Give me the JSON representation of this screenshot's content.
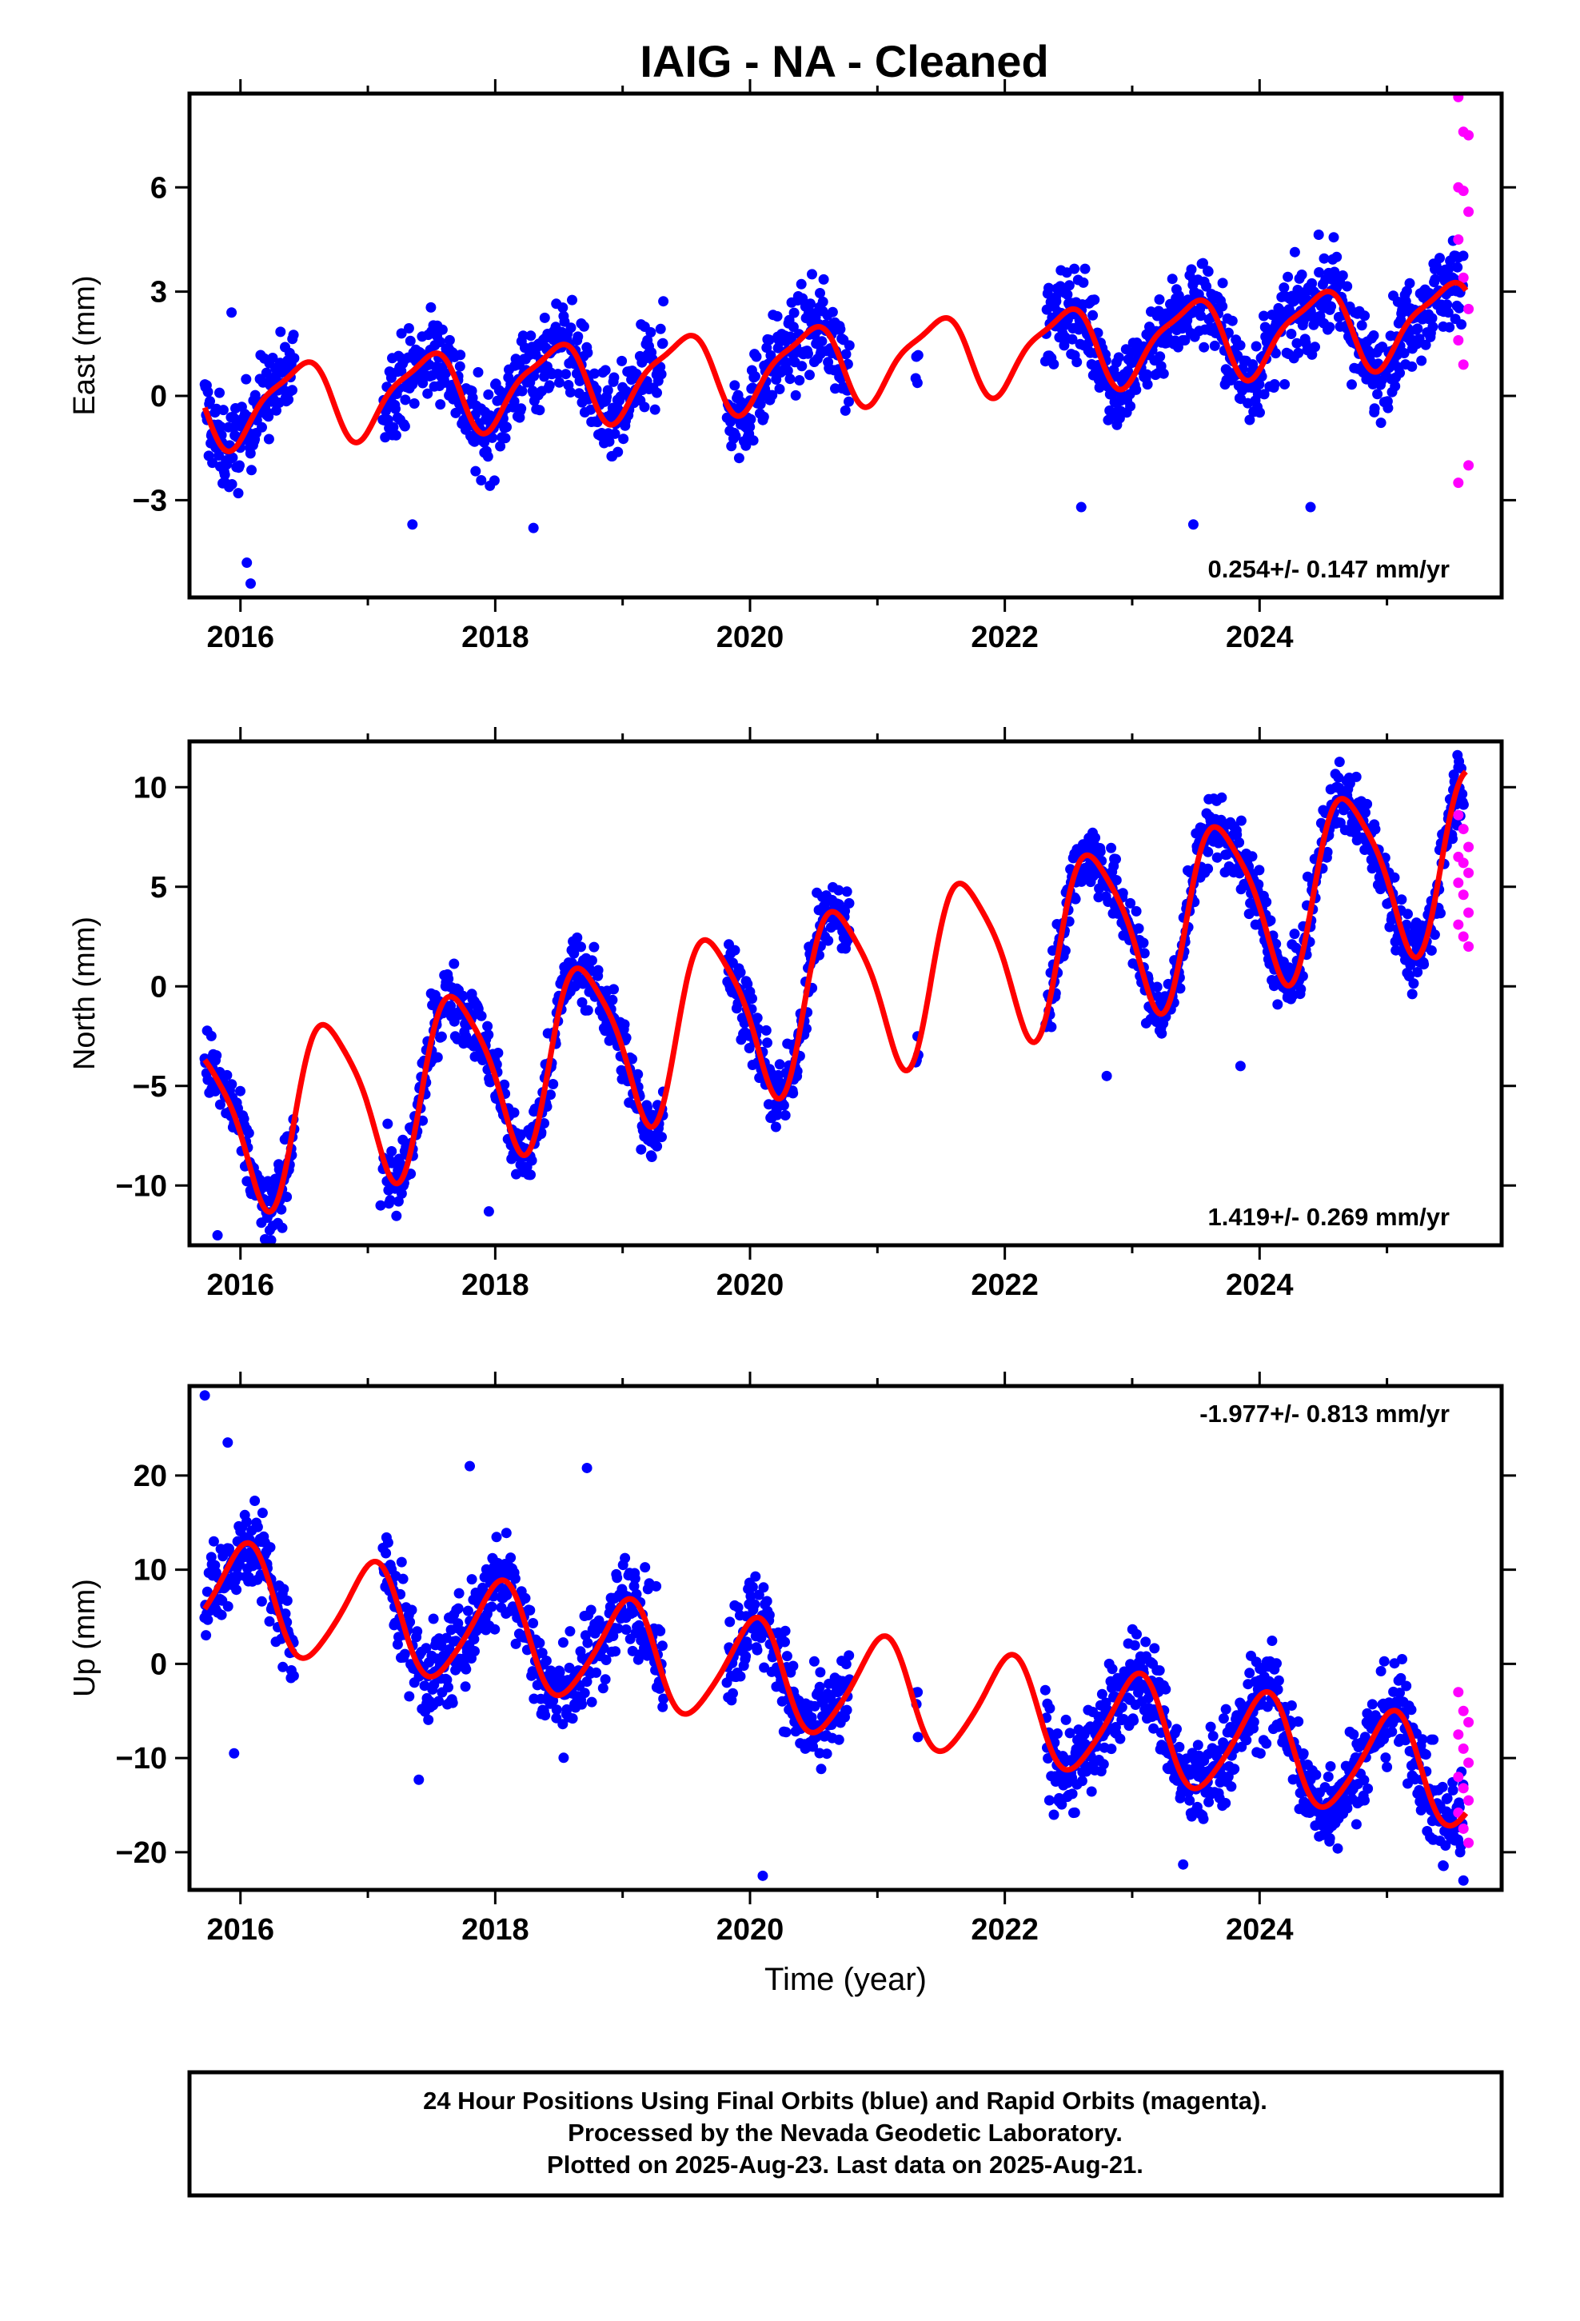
{
  "title": "IAIG  - NA - Cleaned",
  "footer": {
    "line1": "24 Hour Positions Using Final Orbits (blue) and Rapid Orbits (magenta).",
    "line2": "Processed by the Nevada Geodetic Laboratory.",
    "line3": "Plotted on 2025-Aug-23. Last data on 2025-Aug-21."
  },
  "colors": {
    "final": "#0000ff",
    "rapid": "#ff00ff",
    "model": "#ff0000",
    "frame": "#000000"
  },
  "chart_data": [
    {
      "type": "scatter",
      "name": "east",
      "ylabel": "East (mm)",
      "xlabel": "",
      "xlim": [
        2015.6,
        2025.9
      ],
      "ylim": [
        -5.8,
        8.7
      ],
      "xticks": [
        2016,
        2018,
        2020,
        2022,
        2024
      ],
      "yticks": [
        -3,
        0,
        3,
        6
      ],
      "ytick_labels": [
        "−3",
        "0",
        "3",
        "6"
      ],
      "rate_label": "0.254+/- 0.147 mm/yr",
      "rate_position": "bottom-right",
      "trend": {
        "start": -0.3,
        "rate": 0.254
      },
      "seasonal": {
        "annual_amp": 1.1,
        "annual_phase": 0.2,
        "semiannual_amp": 0.3,
        "semiannual_phase": 1.0
      },
      "scatter_sd": 0.9,
      "outliers": [
        [
          2015.93,
          2.4
        ],
        [
          2016.05,
          -4.8
        ],
        [
          2016.08,
          -5.4
        ],
        [
          2017.35,
          -3.7
        ],
        [
          2018.3,
          -3.8
        ],
        [
          2023.48,
          -3.7
        ],
        [
          2022.6,
          -3.2
        ],
        [
          2024.4,
          -3.2
        ]
      ],
      "rapid": {
        "x_range": [
          2025.56,
          2025.64
        ],
        "values": [
          8.6,
          7.6,
          7.5,
          6.0,
          5.9,
          5.3,
          4.5,
          3.4,
          2.5,
          1.6,
          0.9,
          -2.0,
          -2.5
        ]
      }
    },
    {
      "type": "scatter",
      "name": "north",
      "ylabel": "North (mm)",
      "xlabel": "",
      "xlim": [
        2015.6,
        2025.9
      ],
      "ylim": [
        -13.0,
        12.3
      ],
      "xticks": [
        2016,
        2018,
        2020,
        2022,
        2024
      ],
      "yticks": [
        -10,
        -5,
        0,
        5,
        10
      ],
      "ytick_labels": [
        "−10",
        "−5",
        "0",
        "5",
        "10"
      ],
      "rate_label": "1.419+/- 0.269 mm/yr",
      "rate_position": "bottom-right",
      "trend": {
        "start": -7.2,
        "rate": 1.419
      },
      "seasonal": {
        "annual_amp": 4.2,
        "annual_phase": 0.45,
        "semiannual_amp": 0.8,
        "semiannual_phase": 0.9
      },
      "scatter_sd": 1.2,
      "outliers": [
        [
          2015.82,
          -12.5
        ],
        [
          2017.1,
          -11.0
        ],
        [
          2017.95,
          -11.3
        ],
        [
          2022.8,
          -4.5
        ],
        [
          2023.85,
          -4.0
        ],
        [
          2025.35,
          1.8
        ]
      ],
      "rapid": {
        "x_range": [
          2025.56,
          2025.64
        ],
        "values": [
          8.6,
          7.9,
          7.0,
          6.5,
          6.2,
          5.7,
          5.2,
          4.6,
          3.7,
          3.1,
          2.5,
          2.0
        ]
      }
    },
    {
      "type": "scatter",
      "name": "up",
      "ylabel": "Up (mm)",
      "xlabel": "Time (year)",
      "xlim": [
        2015.6,
        2025.9
      ],
      "ylim": [
        -24.0,
        29.5
      ],
      "xticks": [
        2016,
        2018,
        2020,
        2022,
        2024
      ],
      "yticks": [
        -20,
        -10,
        0,
        10,
        20
      ],
      "ytick_labels": [
        "−20",
        "−10",
        "0",
        "10",
        "20"
      ],
      "rate_label": "-1.977+/- 0.813 mm/yr",
      "rate_position": "top-right",
      "trend": {
        "start": 7.5,
        "rate": -1.977
      },
      "seasonal": {
        "annual_amp": 5.5,
        "annual_phase": 0.78,
        "semiannual_amp": 0.8,
        "semiannual_phase": 0.5
      },
      "scatter_sd": 3.5,
      "outliers": [
        [
          2015.72,
          28.5
        ],
        [
          2015.9,
          23.5
        ],
        [
          2015.95,
          -9.5
        ],
        [
          2017.4,
          -12.3
        ],
        [
          2020.1,
          -22.5
        ],
        [
          2023.4,
          -21.3
        ],
        [
          2025.6,
          -23.0
        ],
        [
          2017.8,
          21.0
        ],
        [
          2018.72,
          20.8
        ]
      ],
      "rapid": {
        "x_range": [
          2025.56,
          2025.64
        ],
        "values": [
          -3.0,
          -5.0,
          -6.2,
          -7.5,
          -9.0,
          -10.5,
          -12.0,
          -13.2,
          -14.5,
          -15.8,
          -17.5,
          -19.0
        ]
      }
    }
  ]
}
